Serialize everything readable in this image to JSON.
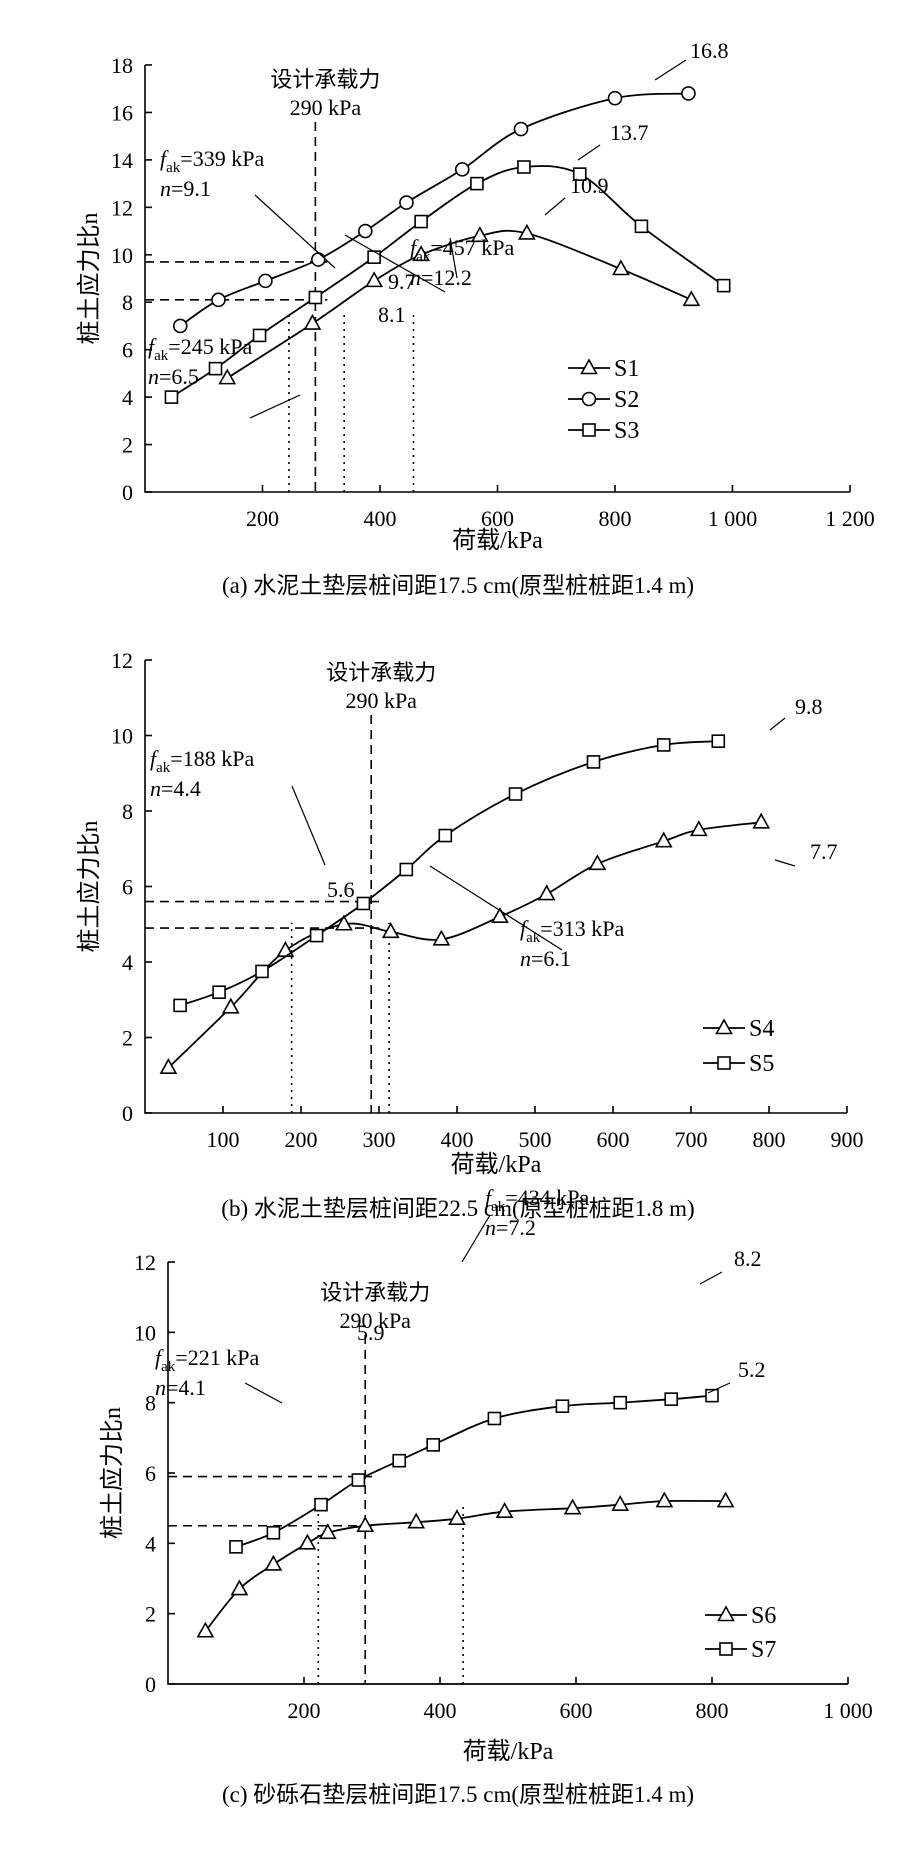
{
  "chart_data": [
    {
      "id": "a",
      "type": "line",
      "caption": "(a) 水泥土垫层桩间距17.5 cm(原型桩桩距1.4 m)",
      "xlabel": "荷载/kPa",
      "ylabel": "桩土应力比n",
      "xlim": [
        0,
        1200
      ],
      "ylim": [
        0,
        18
      ],
      "xticks": [
        "200",
        "400",
        "600",
        "800",
        "1 000",
        "1 200"
      ],
      "yticks": [
        "0",
        "2",
        "4",
        "6",
        "8",
        "10",
        "12",
        "14",
        "16",
        "18"
      ],
      "design_label_1": "设计承载力",
      "design_label_2": "290 kPa",
      "design_load": 290,
      "series": [
        {
          "name": "S1",
          "marker": "triangle",
          "x": [
            140,
            285,
            390,
            470,
            570,
            650,
            810,
            930
          ],
          "y": [
            4.8,
            7.1,
            8.9,
            10.0,
            10.8,
            10.9,
            9.4,
            8.1
          ]
        },
        {
          "name": "S2",
          "marker": "circle",
          "x": [
            60,
            125,
            205,
            295,
            375,
            445,
            540,
            640,
            800,
            925
          ],
          "y": [
            7.0,
            8.1,
            8.9,
            9.8,
            11.0,
            12.2,
            13.6,
            15.3,
            16.6,
            16.8
          ]
        },
        {
          "name": "S3",
          "marker": "square",
          "x": [
            45,
            120,
            195,
            290,
            390,
            470,
            565,
            645,
            740,
            845,
            985
          ],
          "y": [
            4.0,
            5.2,
            6.6,
            8.2,
            9.9,
            11.4,
            13.0,
            13.7,
            13.4,
            11.2,
            8.7
          ]
        }
      ],
      "ref_dashed_h": [
        9.7,
        8.1
      ],
      "ref_dotted_v": [
        245,
        339,
        457
      ],
      "endpoint_labels": [
        "16.8",
        "13.7",
        "10.9"
      ],
      "annotations": [
        {
          "fak": "339 kPa",
          "n": "9.1"
        },
        {
          "fak": "457 kPa",
          "n": "12.2"
        },
        {
          "fak": "245 kPa",
          "n": "6.5"
        }
      ],
      "mid_labels": [
        "9.7",
        "8.1"
      ]
    },
    {
      "id": "b",
      "type": "line",
      "caption": "(b) 水泥土垫层桩间距22.5 cm(原型桩桩距1.8 m)",
      "xlabel": "荷载/kPa",
      "ylabel": "桩土应力比n",
      "xlim": [
        0,
        900
      ],
      "ylim": [
        0,
        12
      ],
      "xticks": [
        "100",
        "200",
        "300",
        "400",
        "500",
        "600",
        "700",
        "800",
        "900"
      ],
      "yticks": [
        "0",
        "2",
        "4",
        "6",
        "8",
        "10",
        "12"
      ],
      "design_label_1": "设计承载力",
      "design_label_2": "290 kPa",
      "design_load": 290,
      "series": [
        {
          "name": "S4",
          "marker": "triangle",
          "x": [
            30,
            110,
            180,
            255,
            315,
            380,
            455,
            515,
            580,
            665,
            710,
            790
          ],
          "y": [
            1.2,
            2.8,
            4.3,
            5.0,
            4.8,
            4.6,
            5.2,
            5.8,
            6.6,
            7.2,
            7.5,
            7.7
          ]
        },
        {
          "name": "S5",
          "marker": "square",
          "x": [
            45,
            95,
            150,
            220,
            280,
            335,
            385,
            475,
            575,
            665,
            735
          ],
          "y": [
            2.85,
            3.2,
            3.75,
            4.7,
            5.55,
            6.45,
            7.35,
            8.45,
            9.3,
            9.75,
            9.85
          ]
        }
      ],
      "ref_dashed_h": [
        5.6,
        4.9
      ],
      "ref_dotted_v": [
        188,
        313
      ],
      "endpoint_labels": [
        "9.8",
        "7.7"
      ],
      "annotations": [
        {
          "fak": "188 kPa",
          "n": "4.4"
        },
        {
          "fak": "313 kPa",
          "n": "6.1"
        }
      ],
      "mid_labels": [
        "5.6"
      ]
    },
    {
      "id": "c",
      "type": "line",
      "caption": "(c) 砂砾石垫层桩间距17.5 cm(原型桩桩距1.4 m)",
      "xlabel": "荷载/kPa",
      "ylabel": "桩土应力比n",
      "xlim": [
        0,
        1000
      ],
      "ylim": [
        0,
        12
      ],
      "xticks": [
        "200",
        "400",
        "600",
        "800",
        "1 000"
      ],
      "yticks": [
        "0",
        "2",
        "4",
        "6",
        "8",
        "10",
        "12"
      ],
      "design_label_1": "设计承载力",
      "design_label_2": "290 kPa",
      "design_load": 290,
      "series": [
        {
          "name": "S6",
          "marker": "triangle",
          "x": [
            55,
            105,
            155,
            205,
            235,
            290,
            365,
            425,
            495,
            595,
            665,
            730,
            820
          ],
          "y": [
            1.5,
            2.7,
            3.4,
            4.0,
            4.3,
            4.5,
            4.6,
            4.7,
            4.9,
            5.0,
            5.1,
            5.2,
            5.2
          ]
        },
        {
          "name": "S7",
          "marker": "square",
          "x": [
            100,
            155,
            225,
            280,
            340,
            390,
            480,
            580,
            665,
            740,
            800
          ],
          "y": [
            3.9,
            4.3,
            5.1,
            5.8,
            6.35,
            6.8,
            7.55,
            7.9,
            8.0,
            8.1,
            8.2
          ]
        }
      ],
      "ref_dashed_h": [
        5.9,
        4.5
      ],
      "ref_dotted_v": [
        221,
        434
      ],
      "endpoint_labels": [
        "8.2",
        "5.2"
      ],
      "annotations": [
        {
          "fak": "221 kPa",
          "n": "4.1"
        },
        {
          "fak": "434 kPa",
          "n": "7.2"
        }
      ],
      "mid_labels": [
        "5.9"
      ]
    }
  ]
}
